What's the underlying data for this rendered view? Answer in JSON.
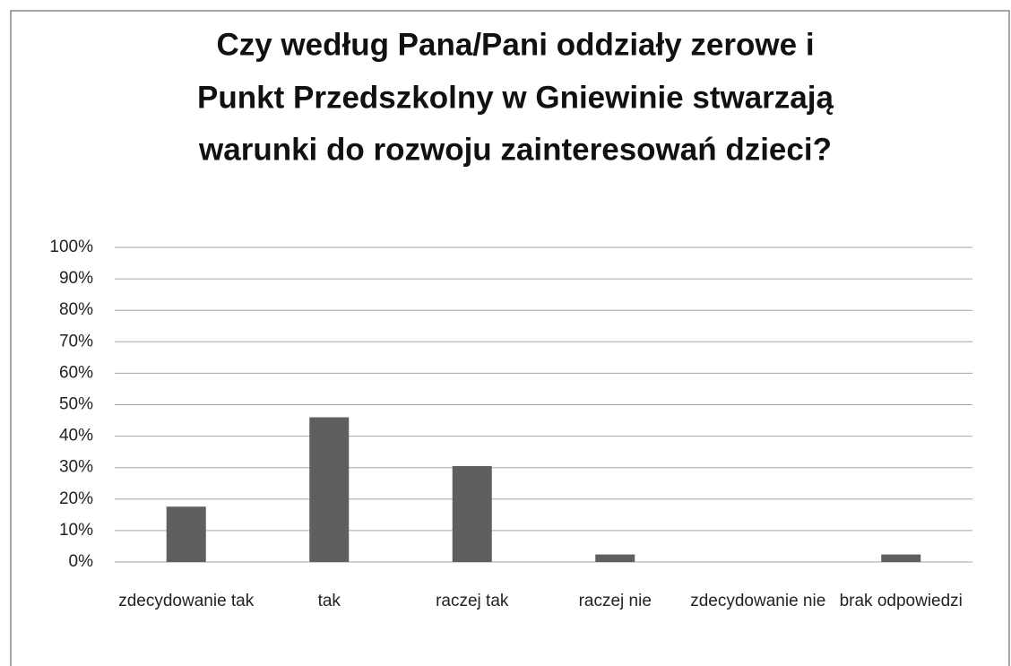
{
  "chart_data": {
    "type": "bar",
    "title": [
      "Czy według Pana/Pani oddziały zerowe i",
      "Punkt Przedszkolny w Gniewinie stwarzają",
      "warunki do rozwoju zainteresowań dzieci?"
    ],
    "categories": [
      "zdecydowanie tak",
      "tak",
      "raczej tak",
      "raczej nie",
      "zdecydowanie nie",
      "brak odpowiedzi"
    ],
    "values": [
      17.6,
      46,
      30.5,
      2.4,
      0,
      2.4
    ],
    "color": "#5f5f5f",
    "ylim": [
      0,
      100
    ],
    "yticks": [
      {
        "value": 0,
        "label": "0%"
      },
      {
        "value": 10,
        "label": "10%"
      },
      {
        "value": 20,
        "label": "20%"
      },
      {
        "value": 30,
        "label": "30%"
      },
      {
        "value": 40,
        "label": "40%"
      },
      {
        "value": 50,
        "label": "50%"
      },
      {
        "value": 60,
        "label": "60%"
      },
      {
        "value": 70,
        "label": "70%"
      },
      {
        "value": 80,
        "label": "80%"
      },
      {
        "value": 90,
        "label": "90%"
      },
      {
        "value": 100,
        "label": "100%"
      }
    ],
    "grid": true
  }
}
